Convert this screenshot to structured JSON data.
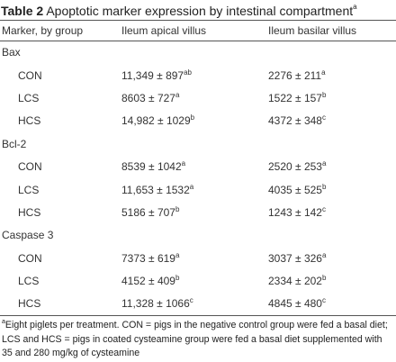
{
  "caption": {
    "label": "Table 2",
    "title": "Apoptotic marker expression by intestinal compartment",
    "note_mark": "a"
  },
  "columns": [
    "Marker, by group",
    "Ileum apical villus",
    "Ileum basilar villus"
  ],
  "groups": [
    {
      "name": "Bax",
      "rows": [
        {
          "label": "CON",
          "apical": "11,349 ± 897",
          "apical_sup": "ab",
          "basilar": "2276 ± 211",
          "basilar_sup": "a"
        },
        {
          "label": "LCS",
          "apical": "8603 ± 727",
          "apical_sup": "a",
          "basilar": "1522 ± 157",
          "basilar_sup": "b"
        },
        {
          "label": "HCS",
          "apical": "14,982 ± 1029",
          "apical_sup": "b",
          "basilar": "4372 ± 348",
          "basilar_sup": "c"
        }
      ]
    },
    {
      "name": "Bcl-2",
      "rows": [
        {
          "label": "CON",
          "apical": "8539 ± 1042",
          "apical_sup": "a",
          "basilar": "2520 ± 253",
          "basilar_sup": "a"
        },
        {
          "label": "LCS",
          "apical": "11,653 ± 1532",
          "apical_sup": "a",
          "basilar": "4035 ± 525",
          "basilar_sup": "b"
        },
        {
          "label": "HCS",
          "apical": "5186 ± 707",
          "apical_sup": "b",
          "basilar": "1243 ± 142",
          "basilar_sup": "c"
        }
      ]
    },
    {
      "name": "Caspase 3",
      "rows": [
        {
          "label": "CON",
          "apical": "7373 ± 619",
          "apical_sup": "a",
          "basilar": "3037 ± 326",
          "basilar_sup": "a"
        },
        {
          "label": "LCS",
          "apical": "4152 ± 409",
          "apical_sup": "b",
          "basilar": "2334 ± 202",
          "basilar_sup": "b"
        },
        {
          "label": "HCS",
          "apical": "11,328 ± 1066",
          "apical_sup": "c",
          "basilar": "4845 ± 480",
          "basilar_sup": "c"
        }
      ]
    }
  ],
  "footnote": {
    "mark": "a",
    "text": "Eight piglets per treatment. CON = pigs in the negative control group were fed a basal diet; LCS and HCS = pigs in coated cysteamine group were fed a basal diet supplemented with 35 and 280 mg/kg of cysteamine"
  }
}
